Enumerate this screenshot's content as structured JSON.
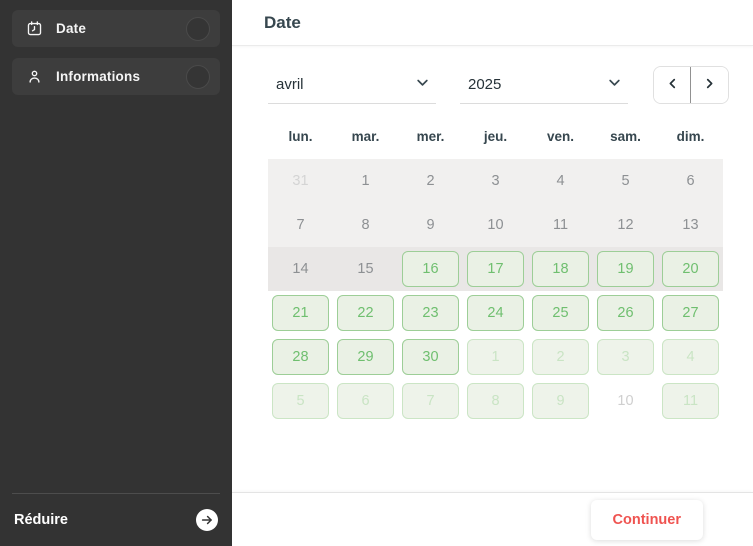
{
  "sidebar": {
    "items": [
      {
        "label": "Date",
        "icon": "calendar-icon"
      },
      {
        "label": "Informations",
        "icon": "person-icon"
      }
    ],
    "collapse": {
      "label": "Réduire",
      "icon": "arrow-right-icon"
    }
  },
  "main": {
    "title": "Date",
    "controls": {
      "month_value": "avril",
      "year_value": "2025"
    },
    "calendar": {
      "day_headers": [
        "lun.",
        "mar.",
        "mer.",
        "jeu.",
        "ven.",
        "sam.",
        "dim."
      ],
      "weeks": [
        {
          "band": "light",
          "days": [
            {
              "d": "31",
              "state": "out"
            },
            {
              "d": "1",
              "state": "past"
            },
            {
              "d": "2",
              "state": "past"
            },
            {
              "d": "3",
              "state": "past"
            },
            {
              "d": "4",
              "state": "past"
            },
            {
              "d": "5",
              "state": "past"
            },
            {
              "d": "6",
              "state": "past"
            }
          ]
        },
        {
          "band": "light",
          "days": [
            {
              "d": "7",
              "state": "past"
            },
            {
              "d": "8",
              "state": "past"
            },
            {
              "d": "9",
              "state": "past"
            },
            {
              "d": "10",
              "state": "past"
            },
            {
              "d": "11",
              "state": "past"
            },
            {
              "d": "12",
              "state": "past"
            },
            {
              "d": "13",
              "state": "past"
            }
          ]
        },
        {
          "band": "dark",
          "days": [
            {
              "d": "14",
              "state": "past"
            },
            {
              "d": "15",
              "state": "past"
            },
            {
              "d": "16",
              "state": "available"
            },
            {
              "d": "17",
              "state": "available"
            },
            {
              "d": "18",
              "state": "available"
            },
            {
              "d": "19",
              "state": "available"
            },
            {
              "d": "20",
              "state": "available"
            }
          ]
        },
        {
          "band": "none",
          "days": [
            {
              "d": "21",
              "state": "available"
            },
            {
              "d": "22",
              "state": "available"
            },
            {
              "d": "23",
              "state": "available"
            },
            {
              "d": "24",
              "state": "available"
            },
            {
              "d": "25",
              "state": "available"
            },
            {
              "d": "26",
              "state": "available"
            },
            {
              "d": "27",
              "state": "available"
            }
          ]
        },
        {
          "band": "none",
          "days": [
            {
              "d": "28",
              "state": "available"
            },
            {
              "d": "29",
              "state": "available"
            },
            {
              "d": "30",
              "state": "available"
            },
            {
              "d": "1",
              "state": "faded"
            },
            {
              "d": "2",
              "state": "faded"
            },
            {
              "d": "3",
              "state": "faded"
            },
            {
              "d": "4",
              "state": "faded"
            }
          ]
        },
        {
          "band": "none",
          "days": [
            {
              "d": "5",
              "state": "faded"
            },
            {
              "d": "6",
              "state": "faded"
            },
            {
              "d": "7",
              "state": "faded"
            },
            {
              "d": "8",
              "state": "faded"
            },
            {
              "d": "9",
              "state": "faded"
            },
            {
              "d": "10",
              "state": "muted"
            },
            {
              "d": "11",
              "state": "faded"
            }
          ]
        }
      ]
    },
    "footer": {
      "continue_label": "Continuer"
    }
  },
  "colors": {
    "sidebar_bg": "#333333",
    "sidebar_item_bg": "#3d3d3d",
    "header_text": "#37474f",
    "available_green_border": "#9dce97",
    "available_green_text": "#6fbf6f",
    "band_light": "#f1f0ef",
    "band_dark": "#e9e7e6",
    "continue_red": "#ef5350"
  }
}
